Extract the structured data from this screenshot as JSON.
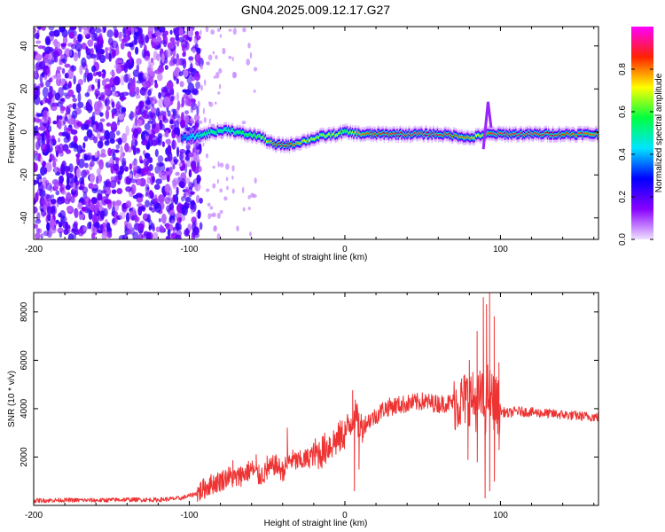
{
  "title": "GN04.2025.009.12.17.G27",
  "chart_data": [
    {
      "type": "heatmap",
      "xlabel": "Height of straight line (km)",
      "ylabel": "Frequency (Hz)",
      "xlim": [
        -200,
        163
      ],
      "ylim": [
        -50,
        49
      ],
      "xticks": [
        -200,
        -100,
        0,
        100
      ],
      "yticks": [
        -40,
        -20,
        0,
        20,
        40
      ],
      "colorbar": {
        "label": "Normalized spectral amplitude",
        "range": [
          0,
          1
        ],
        "ticks": [
          0.0,
          0.2,
          0.4,
          0.6,
          0.8
        ],
        "colors": [
          "#f0e0ff",
          "#8800ff",
          "#0000ff",
          "#00e5ff",
          "#00ff40",
          "#ffff00",
          "#ff2200",
          "#ff00ff"
        ]
      },
      "noise_region_x": [
        -200,
        -97
      ],
      "ridge": {
        "x": [
          -105,
          -95,
          -85,
          -75,
          -65,
          -55,
          -45,
          -35,
          -25,
          -15,
          -5,
          0,
          10,
          20,
          40,
          60,
          75,
          80,
          85,
          90,
          95,
          100,
          120,
          140,
          163
        ],
        "frequency": [
          -3,
          -2,
          0,
          1,
          -1,
          -2,
          -6,
          -6,
          -4,
          -2,
          -1,
          0,
          -1,
          -1,
          -1,
          -1,
          -2,
          -3,
          -2,
          -1,
          -1,
          -1,
          -1,
          -1,
          -1
        ],
        "amplitude": [
          0.35,
          0.5,
          0.55,
          0.5,
          0.6,
          0.65,
          0.9,
          0.9,
          0.75,
          0.7,
          0.75,
          0.6,
          0.85,
          0.9,
          0.95,
          0.95,
          0.85,
          0.85,
          0.75,
          0.8,
          0.95,
          0.95,
          0.95,
          0.9,
          0.85
        ]
      },
      "grid": false
    },
    {
      "type": "line",
      "xlabel": "Height of straight line (km)",
      "ylabel": "SNR (10 * v/v)",
      "xlim": [
        -200,
        163
      ],
      "ylim": [
        0,
        8800
      ],
      "xticks": [
        -200,
        -100,
        0,
        100
      ],
      "yticks": [
        2000,
        4000,
        6000,
        8000
      ],
      "series": [
        {
          "color": "#ee3333",
          "x": [
            -200,
            -180,
            -160,
            -140,
            -120,
            -105,
            -95,
            -88,
            -85,
            -80,
            -75,
            -70,
            -65,
            -60,
            -55,
            -50,
            -45,
            -40,
            -35,
            -30,
            -25,
            -20,
            -15,
            -10,
            -5,
            0,
            3,
            6,
            10,
            15,
            20,
            25,
            30,
            40,
            50,
            60,
            70,
            75,
            80,
            85,
            88,
            90,
            92,
            94,
            96,
            98,
            100,
            105,
            110,
            120,
            130,
            140,
            150,
            163
          ],
          "values": [
            200,
            220,
            210,
            240,
            230,
            300,
            500,
            800,
            900,
            1000,
            1200,
            1100,
            1300,
            1500,
            1200,
            1400,
            1700,
            1400,
            1900,
            1800,
            1900,
            2100,
            2200,
            2500,
            2700,
            3000,
            3300,
            3800,
            3200,
            3500,
            3700,
            4000,
            4100,
            4200,
            4300,
            4200,
            4250,
            4300,
            4500,
            4200,
            4600,
            3900,
            4800,
            4400,
            4300,
            4100,
            3900,
            3800,
            3900,
            3850,
            3800,
            3750,
            3700,
            3650
          ],
          "spikes": [
            {
              "x": -87,
              "value": 1100
            },
            {
              "x": -80,
              "value": 1300
            },
            {
              "x": -72,
              "value": 1850
            },
            {
              "x": -67,
              "value": 1600
            },
            {
              "x": -57,
              "value": 2100
            },
            {
              "x": -50,
              "value": 2050
            },
            {
              "x": -37,
              "value": 3200
            },
            {
              "x": -22,
              "value": 2300
            },
            {
              "x": 5,
              "value": 4750
            },
            {
              "x": 8,
              "value": 4100
            },
            {
              "x": 75,
              "value": 5000
            },
            {
              "x": 80,
              "value": 6000
            },
            {
              "x": 85,
              "value": 7200
            },
            {
              "x": 89,
              "value": 8600
            },
            {
              "x": 91,
              "value": 8300
            },
            {
              "x": 93,
              "value": 8800
            },
            {
              "x": 96,
              "value": 7800
            },
            {
              "x": 99,
              "value": 5900
            }
          ],
          "dips": [
            {
              "x": 79,
              "value": 1900
            },
            {
              "x": 85,
              "value": 1800
            },
            {
              "x": 90,
              "value": 300
            },
            {
              "x": 93,
              "value": 600
            },
            {
              "x": 96,
              "value": 1000
            },
            {
              "x": 99,
              "value": 2300
            },
            {
              "x": 6,
              "value": 600
            },
            {
              "x": 9,
              "value": 1500
            }
          ]
        }
      ],
      "grid": false
    }
  ]
}
